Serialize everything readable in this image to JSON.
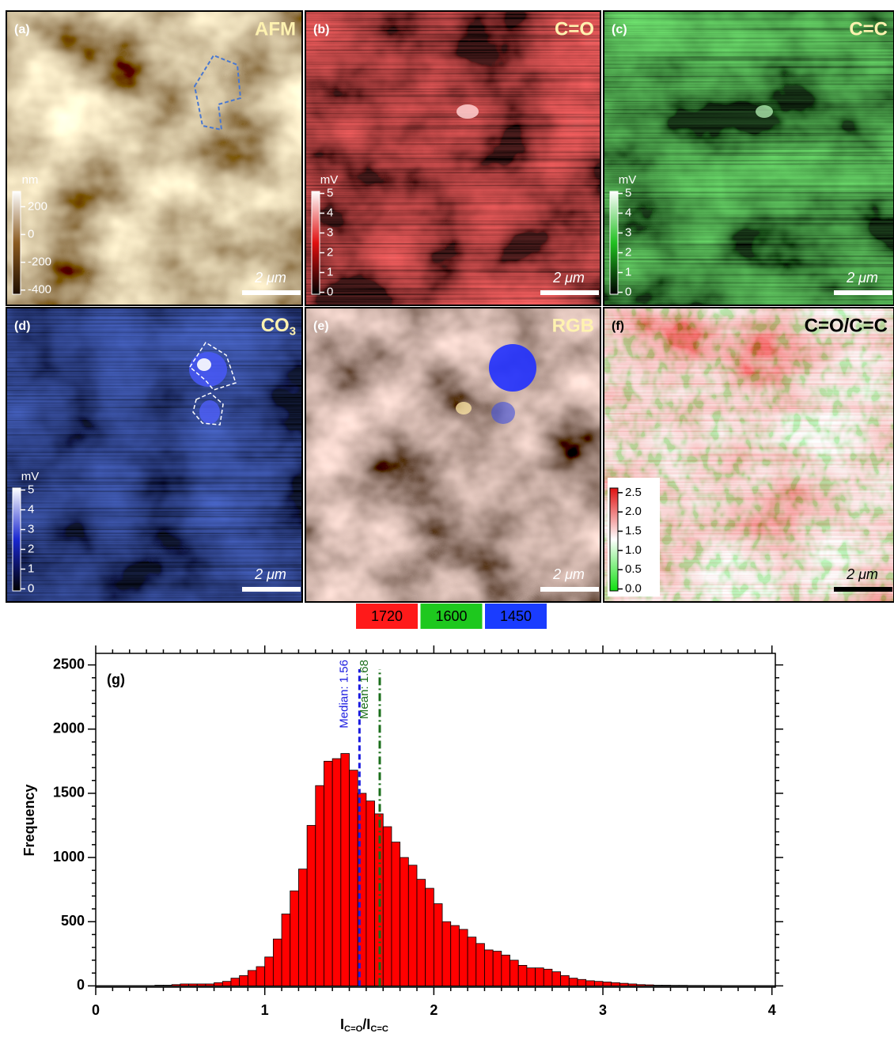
{
  "panels": [
    {
      "label": "(a)",
      "title": "AFM",
      "scalebar": "2 μm",
      "colorbar": {
        "title": "nm",
        "lim": [
          -430,
          310
        ],
        "ticks": [
          200,
          0,
          -200,
          -400
        ],
        "colors": [
          "#1e0e00",
          "#8a5a20",
          "#ffffff"
        ]
      }
    },
    {
      "label": "(b)",
      "title": "C=O",
      "scalebar": "2 μm",
      "colorbar": {
        "title": "mV",
        "lim": [
          -0.1,
          5.1
        ],
        "ticks": [
          5,
          4,
          3,
          2,
          1,
          0
        ],
        "colors": [
          "#000000",
          "#e01010",
          "#ffffff"
        ]
      }
    },
    {
      "label": "(c)",
      "title": "C=C",
      "scalebar": "2 μm",
      "colorbar": {
        "title": "mV",
        "lim": [
          -0.1,
          5.1
        ],
        "ticks": [
          5,
          4,
          3,
          2,
          1,
          0
        ],
        "colors": [
          "#000000",
          "#20c020",
          "#ffffff"
        ]
      }
    },
    {
      "label": "(d)",
      "title": [
        {
          "text": "CO"
        },
        {
          "text": "3",
          "sub": true
        }
      ],
      "scalebar": "2 μm",
      "colorbar": {
        "title": "mV",
        "lim": [
          -0.1,
          5.1
        ],
        "ticks": [
          5,
          4,
          3,
          2,
          1,
          0
        ],
        "colors": [
          "#000000",
          "#1a28d0",
          "#ffffff"
        ]
      }
    },
    {
      "label": "(e)",
      "title": "RGB",
      "scalebar": "2 μm"
    },
    {
      "label": "(f)",
      "title": "C=O/C=C",
      "scalebar": "2 μm",
      "colorbar": {
        "lim": [
          -0.05,
          2.62
        ],
        "ticks": [
          2.5,
          {
            "value": 2.0,
            "label": "2.0"
          },
          1.5,
          {
            "value": 1.0,
            "label": "1.0"
          },
          0.5,
          {
            "value": 0.0,
            "label": "0.0"
          }
        ],
        "colors": [
          "#10e010",
          "#ffffff",
          "#e01010"
        ]
      }
    }
  ],
  "legend": [
    {
      "label": "1720",
      "color": "#ff1a1a"
    },
    {
      "label": "1600",
      "color": "#1ec81e"
    },
    {
      "label": "1450",
      "color": "#1a3cff"
    }
  ],
  "chart_data": {
    "type": "histogram",
    "panel_label": "(g)",
    "xlabel": [
      {
        "text": "I"
      },
      {
        "text": "C=O",
        "sub": true
      },
      {
        "text": "/I"
      },
      {
        "text": "C=C",
        "sub": true
      }
    ],
    "ylabel": "Frequency",
    "color": "#ff0000",
    "bins": [
      0.35,
      0.4,
      0.45,
      0.5,
      0.55,
      0.6,
      0.65,
      0.7,
      0.75,
      0.8,
      0.85,
      0.9,
      0.95,
      1.0,
      1.05,
      1.1,
      1.15,
      1.2,
      1.25,
      1.3,
      1.35,
      1.4,
      1.45,
      1.5,
      1.55,
      1.6,
      1.65,
      1.7,
      1.75,
      1.8,
      1.85,
      1.9,
      1.95,
      2.0,
      2.05,
      2.1,
      2.15,
      2.2,
      2.25,
      2.3,
      2.35,
      2.4,
      2.45,
      2.5,
      2.55,
      2.6,
      2.65,
      2.7,
      2.75,
      2.8,
      2.85,
      2.9,
      2.95,
      3.0,
      3.05,
      3.1,
      3.15,
      3.2,
      3.25,
      3.3,
      3.35,
      3.4,
      3.45,
      3.5,
      3.55,
      3.6,
      3.65,
      3.7
    ],
    "values": [
      5,
      5,
      10,
      15,
      15,
      15,
      15,
      25,
      35,
      60,
      80,
      120,
      150,
      225,
      365,
      560,
      740,
      910,
      1250,
      1560,
      1750,
      1770,
      1810,
      1680,
      1500,
      1440,
      1340,
      1240,
      1120,
      1000,
      940,
      830,
      760,
      640,
      500,
      470,
      440,
      380,
      330,
      280,
      270,
      240,
      200,
      160,
      140,
      140,
      130,
      110,
      80,
      60,
      50,
      40,
      35,
      30,
      25,
      20,
      15,
      10,
      8,
      5,
      5,
      4,
      4,
      3,
      3,
      2,
      2
    ],
    "xlim": [
      0,
      4.02
    ],
    "ylim": [
      -10,
      2590
    ],
    "xticks": [
      0,
      1,
      2,
      3,
      4
    ],
    "yticks": [
      0,
      500,
      1000,
      1500,
      2000,
      2500
    ],
    "xminorticks": [
      0.1,
      0.2,
      0.3,
      0.4,
      0.5,
      0.6,
      0.7,
      0.8,
      0.9,
      1.1,
      1.2,
      1.3,
      1.4,
      1.5,
      1.6,
      1.7,
      1.8,
      1.9,
      2.1,
      2.2,
      2.3,
      2.4,
      2.5,
      2.6,
      2.7,
      2.8,
      2.9,
      3.1,
      3.2,
      3.3,
      3.4,
      3.5,
      3.6,
      3.7,
      3.8,
      3.9
    ],
    "yminorticks": [
      100,
      200,
      300,
      400,
      600,
      700,
      800,
      900,
      1100,
      1200,
      1300,
      1400,
      1600,
      1700,
      1800,
      1900,
      2100,
      2200,
      2300,
      2400
    ],
    "reference_lines": [
      {
        "value": 1.56,
        "label": "Median: 1.56",
        "color": "#1a1ae0",
        "style": "dashed"
      },
      {
        "value": 1.68,
        "label": "Mean: 1.68",
        "color": "#1a6e1a",
        "style": "dashdot"
      }
    ]
  }
}
